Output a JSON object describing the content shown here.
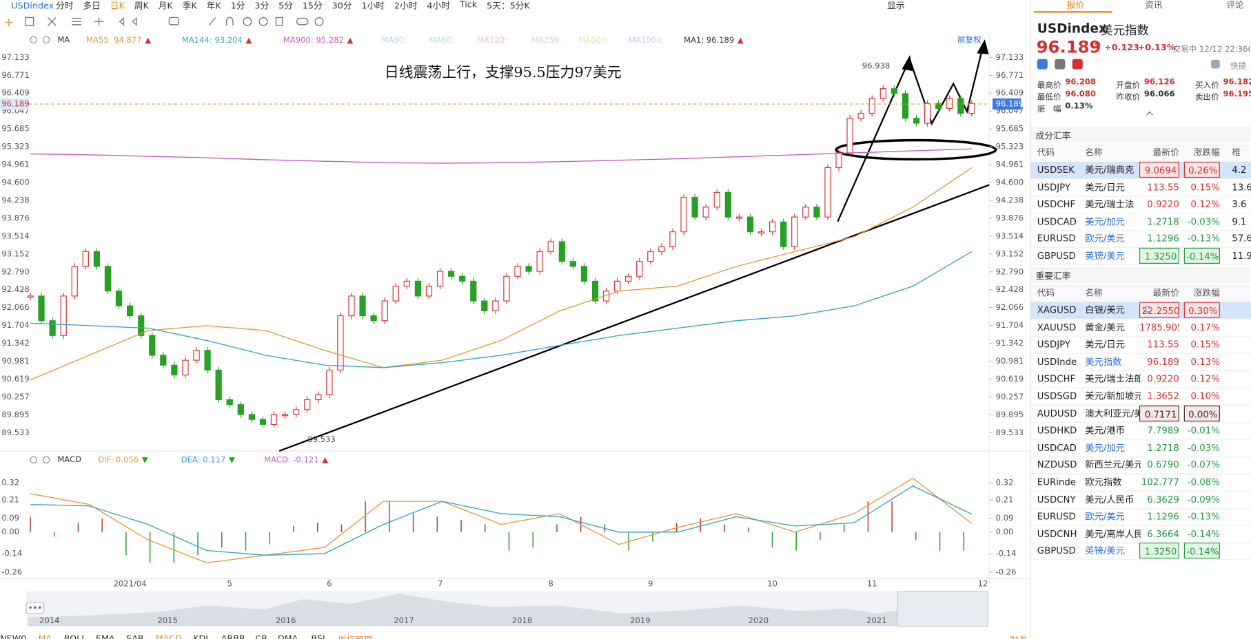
{
  "toolbar": {
    "symbol": "USDindex",
    "periods": [
      "分时",
      "多日",
      "日K",
      "周K",
      "月K",
      "季K",
      "年K",
      "1分",
      "3分",
      "5分",
      "15分",
      "30分",
      "1小时",
      "2小时",
      "4小时",
      "Tick",
      "5天：5分K"
    ],
    "active_period": 2,
    "display": "显示"
  },
  "chart_data": [
    {
      "type": "candlestick",
      "indicator": "MA",
      "adjust": "前复权",
      "legend": [
        {
          "text": "MA55: 94.877",
          "arrow": "▲",
          "color": "#e39a3b"
        },
        {
          "text": "MA144: 93.204",
          "arrow": "▲",
          "color": "#3aa6c8"
        },
        {
          "text": "MA900: 95.282",
          "arrow": "▲",
          "color": "#c85fc0"
        },
        {
          "text": "MA30:",
          "color": "#b8d4ee"
        },
        {
          "text": "MA60:",
          "color": "#bde3d8"
        },
        {
          "text": "MA120:",
          "color": "#f0c4c4"
        },
        {
          "text": "MA250:",
          "color": "#d8d0f0"
        },
        {
          "text": "MA500:",
          "color": "#f2dcb0"
        },
        {
          "text": "MA1000:",
          "color": "#d8c8e8"
        },
        {
          "text": "MA1: 96.189",
          "arrow": "▲",
          "color": "#333333"
        }
      ],
      "up_color": "#d93030",
      "down_color": "#27a024",
      "closes": [
        92.3,
        91.8,
        91.5,
        92.3,
        92.9,
        93.2,
        92.9,
        92.4,
        92.1,
        91.9,
        91.5,
        91.1,
        90.9,
        90.7,
        91.0,
        91.2,
        90.8,
        90.2,
        90.1,
        89.9,
        89.8,
        89.7,
        89.9,
        89.9,
        90.0,
        90.2,
        90.3,
        90.8,
        91.9,
        92.3,
        91.9,
        91.8,
        92.2,
        92.5,
        92.6,
        92.3,
        92.5,
        92.8,
        92.7,
        92.6,
        92.2,
        92.0,
        92.2,
        92.7,
        92.9,
        92.8,
        93.2,
        93.4,
        93.0,
        92.9,
        92.6,
        92.2,
        92.4,
        92.6,
        92.7,
        93.0,
        93.2,
        93.3,
        93.6,
        94.3,
        93.9,
        94.1,
        94.4,
        93.9,
        93.9,
        93.6,
        93.6,
        93.8,
        93.3,
        93.9,
        94.1,
        93.9,
        94.9,
        95.2,
        95.9,
        96.0,
        96.3,
        96.5,
        96.4,
        95.9,
        95.8,
        96.2,
        96.1,
        96.3,
        96.0,
        96.2
      ],
      "series": [
        {
          "name": "MA55",
          "color": "#e39a3b",
          "values": [
            90.6,
            91.1,
            91.6,
            91.7,
            91.6,
            91.2,
            90.85,
            91.0,
            91.4,
            92.0,
            92.4,
            92.5,
            92.9,
            93.2,
            93.5,
            94.1,
            94.9
          ]
        },
        {
          "name": "MA144",
          "color": "#3aa6c8",
          "values": [
            91.75,
            91.7,
            91.65,
            91.4,
            91.1,
            90.9,
            90.85,
            90.95,
            91.1,
            91.3,
            91.5,
            91.65,
            91.8,
            91.9,
            92.1,
            92.5,
            93.2
          ]
        },
        {
          "name": "MA900",
          "color": "#c85fc0",
          "values": [
            95.18,
            95.16,
            95.13,
            95.1,
            95.06,
            95.03,
            95.0,
            94.99,
            95.0,
            95.02,
            95.05,
            95.08,
            95.12,
            95.16,
            95.2,
            95.24,
            95.28
          ]
        }
      ],
      "last": 96.189,
      "high": 96.938,
      "low": 89.533,
      "annotation": "日线震荡上行，支撑95.5压力97美元",
      "ylim": [
        89.178,
        97.327
      ],
      "yticks": [
        97.133,
        96.771,
        96.409,
        96.047,
        95.685,
        95.323,
        94.961,
        {
          "value": 94.6,
          "label": "94.600"
        },
        94.238,
        93.876,
        93.514,
        93.152,
        {
          "value": 92.79,
          "label": "92.790"
        },
        92.428,
        92.066,
        91.704,
        91.342,
        90.981,
        90.619,
        90.257,
        89.895,
        89.533
      ],
      "x_labels": [
        {
          "label": "2021/04",
          "at": 9
        },
        {
          "label": "5",
          "at": 18
        },
        {
          "label": "6",
          "at": 27
        },
        {
          "label": "7",
          "at": 37
        },
        {
          "label": "8",
          "at": 47
        },
        {
          "label": "9",
          "at": 56
        },
        {
          "label": "10",
          "at": 67
        },
        {
          "label": "11",
          "at": 76
        },
        {
          "label": "12",
          "at": 86
        }
      ]
    },
    {
      "type": "macd",
      "indicator": "MACD",
      "legend": [
        {
          "text": "DIF: 0.056",
          "arrow": "▼",
          "color": "#e39a3b"
        },
        {
          "text": "DEA: 0.117",
          "arrow": "▼",
          "color": "#3aa6c8"
        },
        {
          "text": "MACD: -0.121",
          "arrow": "▲",
          "color": "#c85fc0"
        }
      ],
      "histogram": [
        0.1,
        -0.03,
        0.06,
        0.09,
        -0.15,
        -0.2,
        -0.2,
        -0.15,
        -0.1,
        -0.12,
        -0.08,
        0.04,
        0.06,
        0.05,
        0.2,
        0.2,
        0.12,
        0.1,
        0.08,
        0.05,
        -0.12,
        -0.1,
        0.05,
        0.1,
        0.05,
        -0.12,
        -0.06,
        0.06,
        0.09,
        0.05,
        0.03,
        -0.1,
        -0.12,
        -0.05,
        0.05,
        0.2,
        0.2,
        -0.05,
        -0.12,
        -0.12
      ],
      "series": [
        {
          "name": "DIF",
          "color": "#e39a3b",
          "values": [
            0.25,
            0.18,
            -0.05,
            -0.2,
            -0.15,
            -0.1,
            0.2,
            0.2,
            0.05,
            0.12,
            -0.08,
            0.03,
            0.12,
            0.0,
            0.12,
            0.35,
            0.056
          ]
        },
        {
          "name": "DEA",
          "color": "#3aa6c8",
          "values": [
            0.18,
            0.17,
            0.05,
            -0.12,
            -0.15,
            -0.14,
            0.05,
            0.2,
            0.12,
            0.1,
            0.0,
            0.0,
            0.1,
            0.04,
            0.06,
            0.3,
            0.117
          ]
        }
      ],
      "ylim": [
        -0.296,
        0.403
      ],
      "yticks": [
        0.32,
        0.21,
        0.09,
        {
          "value": 0,
          "label": "0.00"
        },
        -0.14,
        -0.26
      ]
    }
  ],
  "navigator": {
    "years": [
      "2014",
      "2015",
      "2016",
      "2017",
      "2018",
      "2019",
      "2020",
      "2021"
    ]
  },
  "bottom_tabs": {
    "items": [
      "NEW0",
      "MA",
      "BOLL",
      "EMA",
      "SAR",
      "MACD",
      "KDJ",
      "ARBR",
      "CR",
      "DMA",
      "BSI",
      "指标管理"
    ],
    "active": [
      1,
      5,
      11
    ],
    "right": "财务"
  },
  "side": {
    "tabs": [
      "报价",
      "资讯",
      "评论"
    ],
    "code": "USDindex",
    "name": "美元指数",
    "price": "96.189",
    "arrow": "↑",
    "change": "+0.123",
    "pct": "+0.13%",
    "status": "交易中 12/12 22:36(",
    "quick": "快捷",
    "stats": [
      {
        "label": "最高价",
        "value": "96.208"
      },
      {
        "label": "开盘价",
        "value": "96.126"
      },
      {
        "label": "买入价",
        "value": "96.182"
      },
      {
        "label": "最低价",
        "value": "96.080"
      },
      {
        "label": "昨收价",
        "value": "96.066"
      },
      {
        "label": "卖出价",
        "value": "96.195"
      },
      {
        "label": "振　幅",
        "value": "0.13%"
      }
    ],
    "component": {
      "title": "成分汇率",
      "header": [
        "代码",
        "名称",
        "最新价",
        "涨跌幅",
        "椎"
      ],
      "rows": [
        [
          "USDSEK",
          "美元/瑞典克",
          "9.0694",
          "0.26%",
          "4.2"
        ],
        [
          "USDJPY",
          "美元/日元",
          "113.55",
          "0.15%",
          "13.6"
        ],
        [
          "USDCHF",
          "美元/瑞士法",
          "0.9220",
          "0.12%",
          "3.6"
        ],
        [
          "USDCAD",
          "美元/加元",
          "1.2718",
          "-0.03%",
          "9.1"
        ],
        [
          "EURUSD",
          "欧元/美元",
          "1.1296",
          "-0.13%",
          "57.6"
        ],
        [
          "GBPUSD",
          "英镑/美元",
          "1.3250",
          "-0.14%",
          "11.9"
        ]
      ],
      "boxed": [
        0,
        5
      ],
      "blue_names": [
        3,
        4,
        5
      ],
      "selected": 0
    },
    "important": {
      "title": "重要汇率",
      "header": [
        "代码",
        "名称",
        "最新价",
        "涨跌幅"
      ],
      "rows": [
        [
          "XAGUSD",
          "白银/美元",
          "22.2550",
          "0.30%"
        ],
        [
          "XAUUSD",
          "黄金/美元",
          "1785.9050",
          "0.17%"
        ],
        [
          "USDJPY",
          "美元/日元",
          "113.55",
          "0.15%"
        ],
        [
          "USDInde",
          "美元指数",
          "96.189",
          "0.13%"
        ],
        [
          "USDCHF",
          "美元/瑞士法郎",
          "0.9220",
          "0.12%"
        ],
        [
          "USDSGD",
          "美元/新加坡元",
          "1.3652",
          "0.10%"
        ],
        [
          "AUDUSD",
          "澳大利亚元/美元",
          "0.7171",
          "0.00%"
        ],
        [
          "USDHKD",
          "美元/港币",
          "7.7989",
          "-0.01%"
        ],
        [
          "USDCAD",
          "美元/加元",
          "1.2718",
          "-0.03%"
        ],
        [
          "NZDUSD",
          "新西兰元/美元",
          "0.6790",
          "-0.07%"
        ],
        [
          "EURinde",
          "欧元指数",
          "102.777",
          "-0.08%"
        ],
        [
          "USDCNY",
          "美元/人民币",
          "6.3629",
          "-0.09%"
        ],
        [
          "EURUSD",
          "欧元/美元",
          "1.1296",
          "-0.13%"
        ],
        [
          "USDCNH",
          "美元/离岸人民币",
          "6.3664",
          "-0.14%"
        ],
        [
          "GBPUSD",
          "英镑/美元",
          "1.3250",
          "-0.14%"
        ]
      ],
      "boxed": [
        0,
        6,
        14
      ],
      "blue_names": [
        3,
        8,
        12,
        14
      ],
      "selected": 0
    }
  }
}
